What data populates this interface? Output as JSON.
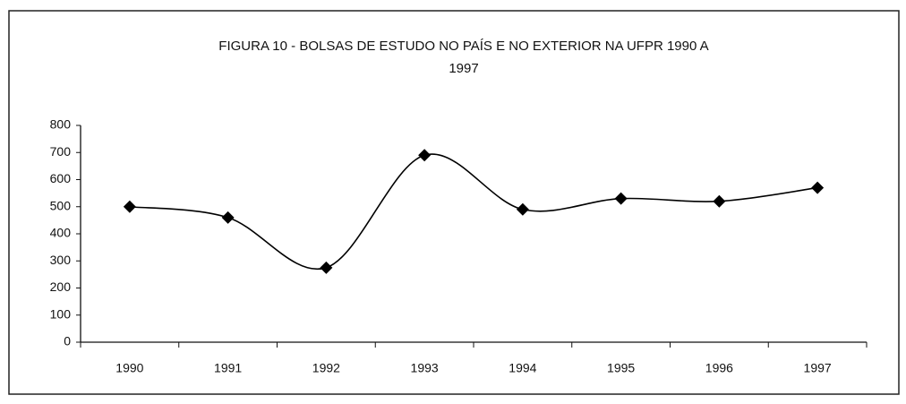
{
  "chart_data": {
    "type": "line",
    "title": "FIGURA 10 - BOLSAS DE ESTUDO NO PAÍS E NO EXTERIOR NA UFPR 1990 A 1997",
    "categories": [
      "1990",
      "1991",
      "1992",
      "1993",
      "1994",
      "1995",
      "1996",
      "1997"
    ],
    "values": [
      500,
      460,
      275,
      690,
      490,
      530,
      520,
      570
    ],
    "color": "#000000",
    "ylim": [
      0,
      800
    ],
    "yticks": [
      0,
      100,
      200,
      300,
      400,
      500,
      600,
      700,
      800
    ],
    "grid": false,
    "smooth": true
  }
}
